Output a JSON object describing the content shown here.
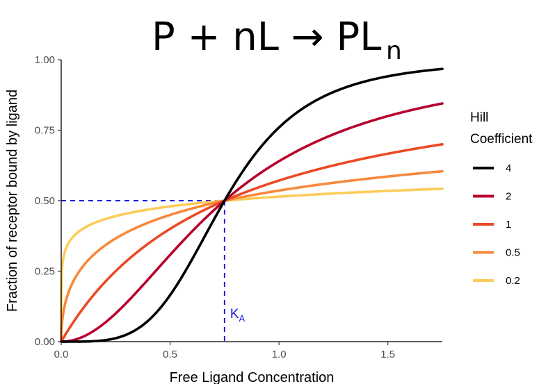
{
  "chart_data": {
    "type": "line",
    "title": {
      "main": "P + nL → PL",
      "subscript": "n"
    },
    "xlabel": "Free Ligand Concentration",
    "ylabel": "Fraction of receptor bound by ligand",
    "xlim": [
      0,
      1.75
    ],
    "ylim": [
      0,
      1.0
    ],
    "x_ticks": [
      {
        "value": 0.0,
        "label": "0.0"
      },
      {
        "value": 0.5,
        "label": "0.5"
      },
      {
        "value": 1.0,
        "label": "1.0"
      },
      {
        "value": 1.5,
        "label": "1.5"
      }
    ],
    "y_ticks": [
      {
        "value": 0.0,
        "label": "0.00"
      },
      {
        "value": 0.25,
        "label": "0.25"
      },
      {
        "value": 0.5,
        "label": "0.50"
      },
      {
        "value": 0.75,
        "label": "0.75"
      },
      {
        "value": 1.0,
        "label": "1.00"
      }
    ],
    "grid": false,
    "legend": {
      "title_lines": [
        "Hill",
        "Coefficient"
      ],
      "placement": "right"
    },
    "ka_value": 0.75,
    "ka_label": {
      "main": "K",
      "sub": "A"
    },
    "reference_color": "#1a1adb",
    "series": [
      {
        "name": "4",
        "hill": 4,
        "color": "#000000"
      },
      {
        "name": "2",
        "hill": 2,
        "color": "#b8002e"
      },
      {
        "name": "1",
        "hill": 1,
        "color": "#ea4a25"
      },
      {
        "name": "0.5",
        "hill": 0.5,
        "color": "#f7893c"
      },
      {
        "name": "0.2",
        "hill": 0.2,
        "color": "#fbcc5a"
      }
    ]
  }
}
